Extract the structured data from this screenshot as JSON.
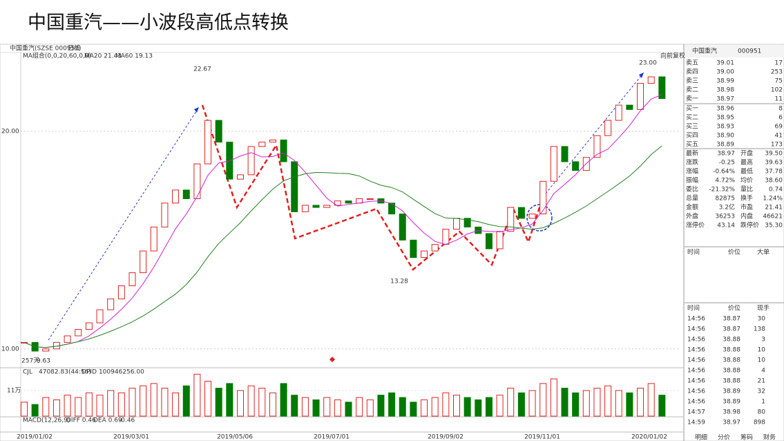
{
  "title": "中国重汽——小波段高低点转换",
  "chart_header": {
    "symbol": "中国重汽(SZSE 000951)",
    "period": "日线",
    "ma_group": "MA组合(0,0,20,60,0,0)",
    "ma20": "MA20 21.43",
    "ma60": "MA60 19.13",
    "adjust": "向前复权"
  },
  "chart_data": {
    "type": "candlestick",
    "closes": [
      10.3,
      9.9,
      10.0,
      10.3,
      10.6,
      10.9,
      11.2,
      11.8,
      12.3,
      12.9,
      13.5,
      14.5,
      15.6,
      16.7,
      17.3,
      16.9,
      18.5,
      20.5,
      19.5,
      17.8,
      18.0,
      19.3,
      19.5,
      19.6,
      18.6,
      16.3,
      16.6,
      16.5,
      16.6,
      16.8,
      16.7,
      16.9,
      16.9,
      16.7,
      16.2,
      15.0,
      14.2,
      14.5,
      14.8,
      15.5,
      16.0,
      15.6,
      15.3,
      14.6,
      15.4,
      16.5,
      16.0,
      16.2,
      17.7,
      19.3,
      18.6,
      18.2,
      18.8,
      19.8,
      20.5,
      21.2,
      21.0,
      22.2,
      22.5,
      21.5
    ],
    "ylim": [
      9.2,
      23.33
    ],
    "yticks": [
      {
        "value": 10,
        "label": "10.00"
      },
      {
        "value": 20,
        "label": "20.00"
      }
    ],
    "xticks": [
      "2019/01/02",
      "2019/03/01",
      "2019/05/06",
      "2019/07/01",
      "2019/09/02",
      "2019/11/01",
      "2020/01/02"
    ],
    "annotations": {
      "high1": 22.67,
      "low1": 13.28,
      "high2": {
        "value": 23,
        "label": "23.00"
      },
      "low0": 9.63,
      "days": "257天"
    },
    "volume": {
      "header": "CJL",
      "value": "47082.83(44:56)",
      "opid": "OPID 100946256.00",
      "values": [
        6,
        5,
        8,
        7,
        9,
        8,
        10,
        9,
        11,
        10,
        12,
        13,
        14,
        12,
        10,
        13,
        18,
        15,
        12,
        14,
        11,
        13,
        12,
        10,
        14,
        9,
        8,
        7,
        8,
        7,
        6,
        8,
        7,
        9,
        10,
        8,
        6,
        7,
        8,
        10,
        9,
        8,
        7,
        8,
        9,
        12,
        10,
        11,
        14,
        16,
        12,
        10,
        11,
        12,
        13,
        11,
        10,
        12,
        14,
        9
      ],
      "ylim": [
        0,
        19
      ],
      "yticks": [
        {
          "value": 11,
          "label": "11万"
        }
      ]
    },
    "macd": {
      "name": "MACD(12,26,9)",
      "diff": "DIFF 0.46",
      "dea": "DEA 0.69",
      "macd": "-0.46"
    }
  },
  "quote": {
    "name": "中国重汽",
    "code": "000951",
    "asks": [
      [
        "卖五",
        "39.01",
        "17"
      ],
      [
        "卖四",
        "39.00",
        "253"
      ],
      [
        "卖三",
        "38.99",
        "75"
      ],
      [
        "卖二",
        "38.98",
        "102"
      ],
      [
        "卖一",
        "38.97",
        "11"
      ]
    ],
    "bids": [
      [
        "买一",
        "38.96",
        "8"
      ],
      [
        "买二",
        "38.95",
        "6"
      ],
      [
        "买三",
        "38.93",
        "69"
      ],
      [
        "买四",
        "38.90",
        "41"
      ],
      [
        "买五",
        "38.89",
        "173"
      ]
    ],
    "stats": [
      [
        "最新",
        "38.97",
        "开盘",
        "39.50"
      ],
      [
        "涨跌",
        "-0.25",
        "最高",
        "39.63"
      ],
      [
        "涨幅",
        "-0.64%",
        "最低",
        "37.78"
      ],
      [
        "振幅",
        "4.72%",
        "均价",
        "38.60"
      ],
      [
        "委比",
        "-21.32%",
        "量比",
        "0.74"
      ],
      [
        "总量",
        "82875",
        "换手",
        "1.24%"
      ],
      [
        "金额",
        "3.2亿",
        "市盈",
        "21.41"
      ],
      [
        "外盘",
        "36253",
        "内盘",
        "46621"
      ],
      [
        "涨停价",
        "43.14",
        "跌停价",
        "35.30"
      ]
    ],
    "big_header": [
      "时间",
      "价位",
      "大单"
    ],
    "tick_header": [
      "时间",
      "价位",
      "现手"
    ],
    "ticks": [
      [
        "14:56",
        "38.87",
        "30"
      ],
      [
        "14:56",
        "38.87",
        "138"
      ],
      [
        "14:56",
        "38.88",
        "3"
      ],
      [
        "14:56",
        "38.88",
        "10"
      ],
      [
        "14:56",
        "38.88",
        "10"
      ],
      [
        "14:56",
        "38.88",
        "4"
      ],
      [
        "14:56",
        "38.88",
        "21"
      ],
      [
        "14:56",
        "38.89",
        "32"
      ],
      [
        "14:56",
        "38.89",
        "1"
      ],
      [
        "14:57",
        "38.98",
        "80"
      ],
      [
        "14:59",
        "38.97",
        "898"
      ]
    ],
    "tabs": [
      "明细",
      "分价",
      "筹码",
      "财务"
    ]
  }
}
